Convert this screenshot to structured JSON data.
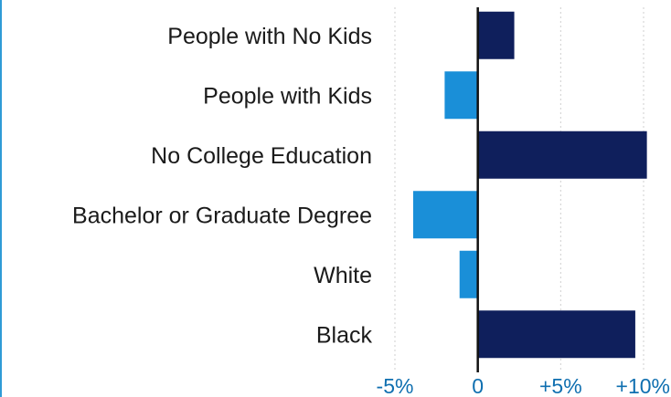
{
  "chart_data": {
    "type": "bar",
    "orientation": "horizontal",
    "categories": [
      "People with No Kids",
      "People with Kids",
      "No College Education",
      "Bachelor or Graduate Degree",
      "White",
      "Black"
    ],
    "values": [
      2.2,
      -2.0,
      10.2,
      -3.9,
      -1.1,
      9.5
    ],
    "bar_colors": [
      "#0f1f5c",
      "#1a8fd8",
      "#0f1f5c",
      "#1a8fd8",
      "#1a8fd8",
      "#0f1f5c"
    ],
    "xlim": [
      -5,
      10
    ],
    "xticks": [
      -5,
      0,
      5,
      10
    ],
    "xtick_labels": [
      "-5%",
      "0",
      "+5%",
      "+10%"
    ],
    "grid": true,
    "grid_style": "dotted vertical",
    "title": "",
    "xlabel": "",
    "ylabel": ""
  }
}
